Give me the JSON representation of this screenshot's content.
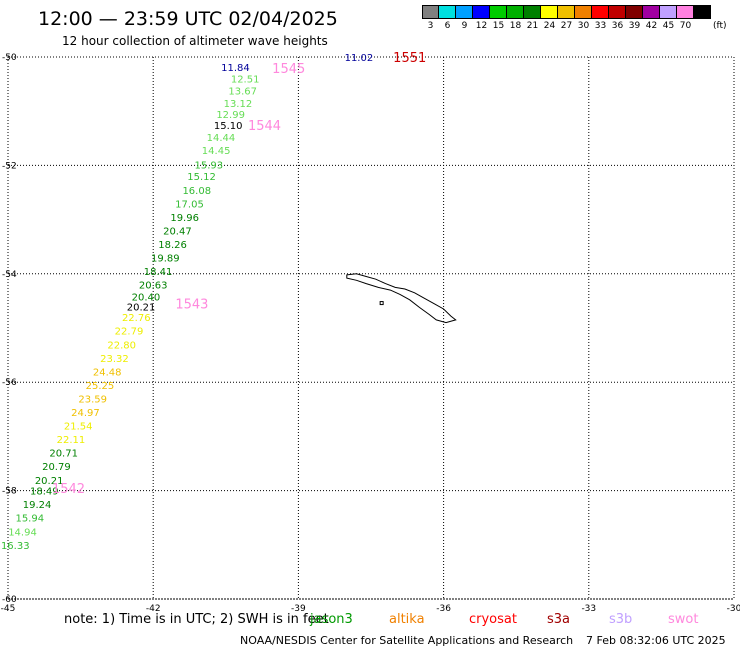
{
  "header": {
    "title": "12:00 — 23:59 UTC 02/04/2025",
    "subtitle": "12 hour collection of altimeter wave heights"
  },
  "colorbar": {
    "unit": "(ft)",
    "swatches": [
      {
        "color": "#808080",
        "tick": "3"
      },
      {
        "color": "#00e0e0",
        "tick": "6"
      },
      {
        "color": "#00a0ff",
        "tick": "9"
      },
      {
        "color": "#0000ff",
        "tick": "12"
      },
      {
        "color": "#00cc00",
        "tick": "15"
      },
      {
        "color": "#00b000",
        "tick": "18"
      },
      {
        "color": "#008000",
        "tick": "21"
      },
      {
        "color": "#ffff00",
        "tick": "24"
      },
      {
        "color": "#f0c000",
        "tick": "27"
      },
      {
        "color": "#f08000",
        "tick": "30"
      },
      {
        "color": "#ff0000",
        "tick": "33"
      },
      {
        "color": "#c00000",
        "tick": "36"
      },
      {
        "color": "#800000",
        "tick": "39"
      },
      {
        "color": "#a000a0",
        "tick": "42"
      },
      {
        "color": "#c0a0ff",
        "tick": "45"
      },
      {
        "color": "#ff80e0",
        "tick": "70"
      },
      {
        "color": "#000000",
        "tick": ""
      }
    ]
  },
  "map": {
    "lon_range": [
      -45,
      -30
    ],
    "lat_range": [
      -60,
      -50
    ],
    "lon_ticks": [
      "-45",
      "-42",
      "-39",
      "-36",
      "-33",
      "-30"
    ],
    "lat_ticks": [
      "-50",
      "-52",
      "-54",
      "-56",
      "-58",
      "-60"
    ],
    "grid": true,
    "coastline": "South Georgia Island",
    "coastline_points": [
      [
        -38.0,
        -54.02
      ],
      [
        -37.8,
        -54.0
      ],
      [
        -37.6,
        -54.05
      ],
      [
        -37.4,
        -54.1
      ],
      [
        -37.2,
        -54.18
      ],
      [
        -37.0,
        -54.25
      ],
      [
        -36.8,
        -54.28
      ],
      [
        -36.6,
        -54.35
      ],
      [
        -36.4,
        -54.45
      ],
      [
        -36.2,
        -54.55
      ],
      [
        -36.0,
        -54.65
      ],
      [
        -35.85,
        -54.78
      ],
      [
        -35.75,
        -54.85
      ],
      [
        -35.95,
        -54.9
      ],
      [
        -36.15,
        -54.85
      ],
      [
        -36.3,
        -54.75
      ],
      [
        -36.5,
        -54.62
      ],
      [
        -36.7,
        -54.48
      ],
      [
        -36.9,
        -54.38
      ],
      [
        -37.1,
        -54.3
      ],
      [
        -37.35,
        -54.25
      ],
      [
        -37.6,
        -54.18
      ],
      [
        -37.8,
        -54.12
      ],
      [
        -38.0,
        -54.08
      ]
    ],
    "offshore_rock": [
      -37.28,
      -54.54
    ]
  },
  "chart_data": {
    "type": "scatter",
    "title": "12:00 — 23:59 UTC 02/04/2025",
    "subtitle": "12 hour collection of altimeter wave heights",
    "xlabel": "",
    "ylabel": "",
    "unit": "ft",
    "xlim": [
      -45,
      -30
    ],
    "ylim": [
      -60,
      -50
    ],
    "series": [
      {
        "mission": "jason3",
        "points": [
          {
            "lon": -40.3,
            "lat": -50.18,
            "value": "11.84",
            "color": "#000099"
          },
          {
            "lon": -40.1,
            "lat": -50.4,
            "value": "12.51",
            "color": "#66dd55"
          },
          {
            "lon": -40.15,
            "lat": -50.62,
            "value": "13.67",
            "color": "#66dd55"
          },
          {
            "lon": -40.25,
            "lat": -50.85,
            "value": "13.12",
            "color": "#66dd55"
          },
          {
            "lon": -40.4,
            "lat": -51.05,
            "value": "12.99",
            "color": "#66dd55"
          },
          {
            "lon": -40.45,
            "lat": -51.25,
            "value": "15.10",
            "color": "#000000"
          },
          {
            "lon": -40.6,
            "lat": -51.48,
            "value": "14.44",
            "color": "#66dd55"
          },
          {
            "lon": -40.7,
            "lat": -51.72,
            "value": "14.45",
            "color": "#66dd55"
          },
          {
            "lon": -40.85,
            "lat": -51.98,
            "value": "15.93",
            "color": "#33bb33"
          },
          {
            "lon": -41.0,
            "lat": -52.2,
            "value": "15.12",
            "color": "#33bb33"
          },
          {
            "lon": -41.1,
            "lat": -52.45,
            "value": "16.08",
            "color": "#33bb33"
          },
          {
            "lon": -41.25,
            "lat": -52.7,
            "value": "17.05",
            "color": "#33bb33"
          },
          {
            "lon": -41.35,
            "lat": -52.95,
            "value": "19.96",
            "color": "#008000"
          },
          {
            "lon": -41.5,
            "lat": -53.2,
            "value": "20.47",
            "color": "#008000"
          },
          {
            "lon": -41.6,
            "lat": -53.45,
            "value": "18.26",
            "color": "#008000"
          },
          {
            "lon": -41.75,
            "lat": -53.7,
            "value": "19.89",
            "color": "#008000"
          },
          {
            "lon": -41.9,
            "lat": -53.95,
            "value": "18.41",
            "color": "#008000"
          },
          {
            "lon": -42.0,
            "lat": -54.2,
            "value": "20.63",
            "color": "#008000"
          },
          {
            "lon": -42.15,
            "lat": -54.42,
            "value": "20.40",
            "color": "#008000"
          },
          {
            "lon": -42.25,
            "lat": -54.6,
            "value": "20.21",
            "color": "#000000"
          },
          {
            "lon": -42.35,
            "lat": -54.8,
            "value": "22.76",
            "color": "#eeee00"
          },
          {
            "lon": -42.5,
            "lat": -55.05,
            "value": "22.79",
            "color": "#eeee00"
          },
          {
            "lon": -42.65,
            "lat": -55.3,
            "value": "22.80",
            "color": "#eeee00"
          },
          {
            "lon": -42.8,
            "lat": -55.55,
            "value": "23.32",
            "color": "#eeee00"
          },
          {
            "lon": -42.95,
            "lat": -55.8,
            "value": "24.48",
            "color": "#f0c000"
          },
          {
            "lon": -43.1,
            "lat": -56.05,
            "value": "25.25",
            "color": "#f0c000"
          },
          {
            "lon": -43.25,
            "lat": -56.3,
            "value": "23.59",
            "color": "#f0c000"
          },
          {
            "lon": -43.4,
            "lat": -56.55,
            "value": "24.97",
            "color": "#f0c000"
          },
          {
            "lon": -43.55,
            "lat": -56.8,
            "value": "21.54",
            "color": "#eeee00"
          },
          {
            "lon": -43.7,
            "lat": -57.05,
            "value": "22.11",
            "color": "#eeee00"
          },
          {
            "lon": -43.85,
            "lat": -57.3,
            "value": "20.71",
            "color": "#008000"
          },
          {
            "lon": -44.0,
            "lat": -57.55,
            "value": "20.79",
            "color": "#008000"
          },
          {
            "lon": -44.15,
            "lat": -57.8,
            "value": "20.21",
            "color": "#008000"
          },
          {
            "lon": -44.25,
            "lat": -58.0,
            "value": "18.49",
            "color": "#008000"
          },
          {
            "lon": -44.4,
            "lat": -58.25,
            "value": "19.24",
            "color": "#008000"
          },
          {
            "lon": -44.55,
            "lat": -58.5,
            "value": "15.94",
            "color": "#33bb33"
          },
          {
            "lon": -44.7,
            "lat": -58.75,
            "value": "14.94",
            "color": "#66dd55"
          },
          {
            "lon": -44.85,
            "lat": -59.0,
            "value": "16.33",
            "color": "#33bb33"
          }
        ]
      },
      {
        "mission": "",
        "points": [
          {
            "lon": -37.75,
            "lat": -50.0,
            "value": "11.02",
            "color": "#000099"
          }
        ]
      }
    ],
    "annotations": [
      {
        "text": "1551",
        "lon": -36.7,
        "lat": -50.0,
        "color": "#cc0000"
      },
      {
        "text": "1545",
        "lon": -39.2,
        "lat": -50.2,
        "color": "#ff88dd"
      },
      {
        "text": "1544",
        "lon": -39.7,
        "lat": -51.25,
        "color": "#ff88dd"
      },
      {
        "text": "1543",
        "lon": -41.2,
        "lat": -54.55,
        "color": "#ff88dd"
      },
      {
        "text": "1542",
        "lon": -43.75,
        "lat": -57.95,
        "color": "#ff88dd"
      }
    ]
  },
  "footer": {
    "note": "note:  1) Time is in UTC; 2) SWH is in feet",
    "missions": [
      {
        "label": "jason3",
        "color": "#009900"
      },
      {
        "label": "altika",
        "color": "#f08000"
      },
      {
        "label": "cryosat",
        "color": "#ff0000"
      },
      {
        "label": "s3a",
        "color": "#a00000"
      },
      {
        "label": "s3b",
        "color": "#c0a0ff"
      },
      {
        "label": "swot",
        "color": "#ff88dd"
      }
    ],
    "credit": "NOAA/NESDIS Center for Satellite Applications and Research",
    "timestamp": "7 Feb 08:32:06 UTC 2025"
  }
}
